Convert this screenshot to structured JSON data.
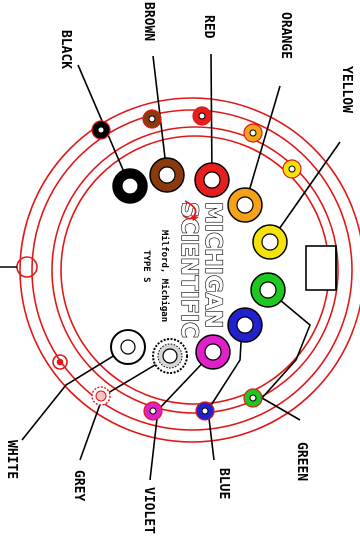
{
  "diagram": {
    "brand_name_line1": "MICHIGAN",
    "brand_name_line2": "SCIENTIFIC",
    "location": "Milford, Michigan",
    "model": "TYPE S"
  },
  "wires": [
    {
      "key": "black",
      "label": "BLACK",
      "color": "#000000"
    },
    {
      "key": "brown",
      "label": "BROWN",
      "color": "#8B3A0E"
    },
    {
      "key": "red",
      "label": "RED",
      "color": "#E61E1E"
    },
    {
      "key": "orange",
      "label": "ORANGE",
      "color": "#F5A21B"
    },
    {
      "key": "yellow",
      "label": "YELLOW",
      "color": "#F5E20A"
    },
    {
      "key": "green",
      "label": "GREEN",
      "color": "#1EC81E"
    },
    {
      "key": "blue",
      "label": "BLUE",
      "color": "#2222CC"
    },
    {
      "key": "violet",
      "label": "VIOLET",
      "color": "#E020C8"
    },
    {
      "key": "grey",
      "label": "GREY",
      "color": "#9A9A9A"
    },
    {
      "key": "white",
      "label": "WHITE",
      "color": "#ffffff"
    }
  ],
  "colors": {
    "outline": "#e01818",
    "line": "#000000"
  }
}
